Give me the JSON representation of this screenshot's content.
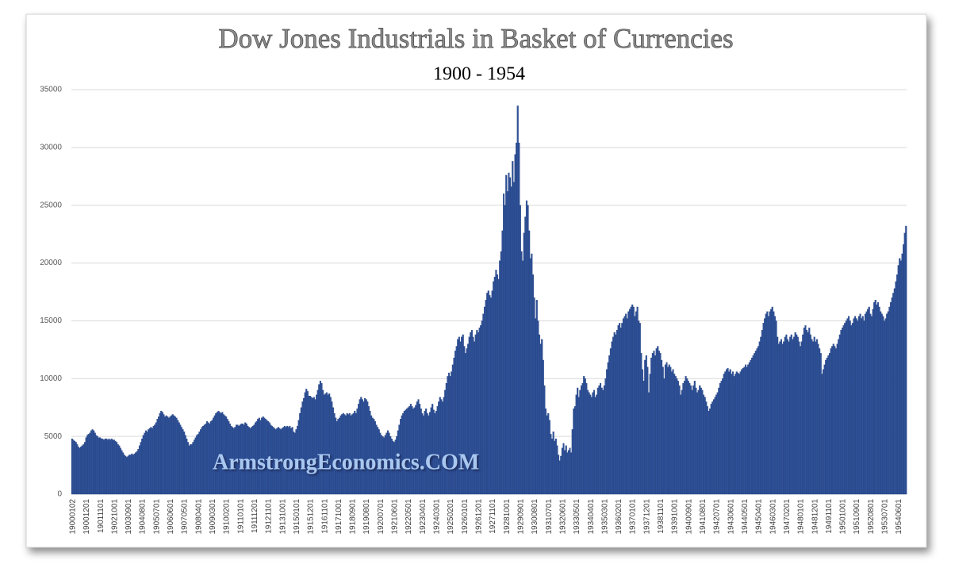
{
  "chart_data": {
    "type": "bar",
    "title": "Dow Jones Industrials in Basket of Currencies",
    "subtitle": "1900 - 1954",
    "watermark": "ArmstrongEconomics.COM",
    "color": "#2f5197",
    "grid": true,
    "ylim": [
      0,
      35000
    ],
    "yticks": [
      0,
      5000,
      10000,
      15000,
      20000,
      25000,
      30000,
      35000
    ],
    "categories": [
      "19000102",
      null,
      null,
      null,
      null,
      null,
      null,
      null,
      null,
      null,
      null,
      "19001201",
      null,
      null,
      null,
      null,
      null,
      null,
      null,
      null,
      null,
      null,
      "19011101",
      null,
      null,
      null,
      null,
      null,
      null,
      null,
      null,
      null,
      null,
      "19021001",
      null,
      null,
      null,
      null,
      null,
      null,
      null,
      null,
      null,
      null,
      "19030901",
      null,
      null,
      null,
      null,
      null,
      null,
      null,
      null,
      null,
      null,
      "19040801",
      null,
      null,
      null,
      null,
      null,
      null,
      null,
      null,
      null,
      null,
      "19050701",
      null,
      null,
      null,
      null,
      null,
      null,
      null,
      null,
      null,
      null,
      "19060601",
      null,
      null,
      null,
      null,
      null,
      null,
      null,
      null,
      null,
      null,
      "19070501",
      null,
      null,
      null,
      null,
      null,
      null,
      null,
      null,
      null,
      null,
      "19080401",
      null,
      null,
      null,
      null,
      null,
      null,
      null,
      null,
      null,
      null,
      "19090301",
      null,
      null,
      null,
      null,
      null,
      null,
      null,
      null,
      null,
      null,
      "19100201",
      null,
      null,
      null,
      null,
      null,
      null,
      null,
      null,
      null,
      null,
      "19110101",
      null,
      null,
      null,
      null,
      null,
      null,
      null,
      null,
      null,
      null,
      "19111201",
      null,
      null,
      null,
      null,
      null,
      null,
      null,
      null,
      null,
      null,
      "19121101",
      null,
      null,
      null,
      null,
      null,
      null,
      null,
      null,
      null,
      null,
      "19131001",
      null,
      null,
      null,
      null,
      null,
      null,
      null,
      null,
      null,
      null,
      "19150101",
      null,
      null,
      null,
      null,
      null,
      null,
      null,
      null,
      null,
      null,
      "19151201",
      null,
      null,
      null,
      null,
      null,
      null,
      null,
      null,
      null,
      null,
      "19161101",
      null,
      null,
      null,
      null,
      null,
      null,
      null,
      null,
      null,
      null,
      "19171001",
      null,
      null,
      null,
      null,
      null,
      null,
      null,
      null,
      null,
      null,
      "19180901",
      null,
      null,
      null,
      null,
      null,
      null,
      null,
      null,
      null,
      null,
      "19190801",
      null,
      null,
      null,
      null,
      null,
      null,
      null,
      null,
      null,
      null,
      "19200701",
      null,
      null,
      null,
      null,
      null,
      null,
      null,
      null,
      null,
      null,
      "19210601",
      null,
      null,
      null,
      null,
      null,
      null,
      null,
      null,
      null,
      null,
      "19220501",
      null,
      null,
      null,
      null,
      null,
      null,
      null,
      null,
      null,
      null,
      "19230401",
      null,
      null,
      null,
      null,
      null,
      null,
      null,
      null,
      null,
      null,
      "19240301",
      null,
      null,
      null,
      null,
      null,
      null,
      null,
      null,
      null,
      null,
      "19250201",
      null,
      null,
      null,
      null,
      null,
      null,
      null,
      null,
      null,
      null,
      "19260101",
      null,
      null,
      null,
      null,
      null,
      null,
      null,
      null,
      null,
      null,
      "19261201",
      null,
      null,
      null,
      null,
      null,
      null,
      null,
      null,
      null,
      null,
      "19271101",
      null,
      null,
      null,
      null,
      null,
      null,
      null,
      null,
      null,
      null,
      "19281001",
      null,
      null,
      null,
      null,
      null,
      null,
      null,
      null,
      null,
      null,
      "19290901",
      null,
      null,
      null,
      null,
      null,
      null,
      null,
      null,
      null,
      null,
      "19300801",
      null,
      null,
      null,
      null,
      null,
      null,
      null,
      null,
      null,
      null,
      "19310701",
      null,
      null,
      null,
      null,
      null,
      null,
      null,
      null,
      null,
      null,
      "19320601",
      null,
      null,
      null,
      null,
      null,
      null,
      null,
      null,
      null,
      null,
      "19330501",
      null,
      null,
      null,
      null,
      null,
      null,
      null,
      null,
      null,
      null,
      "19340401",
      null,
      null,
      null,
      null,
      null,
      null,
      null,
      null,
      null,
      null,
      "19350301",
      null,
      null,
      null,
      null,
      null,
      null,
      null,
      null,
      null,
      null,
      "19360201",
      null,
      null,
      null,
      null,
      null,
      null,
      null,
      null,
      null,
      null,
      "19370101",
      null,
      null,
      null,
      null,
      null,
      null,
      null,
      null,
      null,
      null,
      "19371201",
      null,
      null,
      null,
      null,
      null,
      null,
      null,
      null,
      null,
      null,
      "19381101",
      null,
      null,
      null,
      null,
      null,
      null,
      null,
      null,
      null,
      null,
      "19391001",
      null,
      null,
      null,
      null,
      null,
      null,
      null,
      null,
      null,
      null,
      "19400901",
      null,
      null,
      null,
      null,
      null,
      null,
      null,
      null,
      null,
      null,
      "19410801",
      null,
      null,
      null,
      null,
      null,
      null,
      null,
      null,
      null,
      null,
      "19420701",
      null,
      null,
      null,
      null,
      null,
      null,
      null,
      null,
      null,
      null,
      "19430601",
      null,
      null,
      null,
      null,
      null,
      null,
      null,
      null,
      null,
      null,
      "19440501",
      null,
      null,
      null,
      null,
      null,
      null,
      null,
      null,
      null,
      null,
      "19450401",
      null,
      null,
      null,
      null,
      null,
      null,
      null,
      null,
      null,
      null,
      "19460301",
      null,
      null,
      null,
      null,
      null,
      null,
      null,
      null,
      null,
      null,
      "19470201",
      null,
      null,
      null,
      null,
      null,
      null,
      null,
      null,
      null,
      null,
      "19480101",
      null,
      null,
      null,
      null,
      null,
      null,
      null,
      null,
      null,
      null,
      "19481201",
      null,
      null,
      null,
      null,
      null,
      null,
      null,
      null,
      null,
      null,
      "19491101",
      null,
      null,
      null,
      null,
      null,
      null,
      null,
      null,
      null,
      null,
      "19501001",
      null,
      null,
      null,
      null,
      null,
      null,
      null,
      null,
      null,
      null,
      "19510901",
      null,
      null,
      null,
      null,
      null,
      null,
      null,
      null,
      null,
      null,
      "19520801",
      null,
      null,
      null,
      null,
      null,
      null,
      null,
      null,
      null,
      null,
      "19530701",
      null,
      null,
      null,
      null,
      null,
      null,
      null,
      null,
      null,
      null,
      "19540601",
      null,
      null,
      null,
      null,
      null,
      null
    ],
    "values": [
      4800,
      4700,
      4600,
      4500,
      4300,
      4100,
      4000,
      4100,
      4200,
      4300,
      4500,
      4900,
      5100,
      5200,
      5300,
      5500,
      5600,
      5500,
      5300,
      5100,
      5000,
      4900,
      4900,
      4800,
      4800,
      4700,
      4800,
      4800,
      4700,
      4800,
      4700,
      4800,
      4700,
      4700,
      4600,
      4500,
      4300,
      4200,
      4000,
      3800,
      3600,
      3400,
      3300,
      3200,
      3300,
      3400,
      3400,
      3500,
      3400,
      3500,
      3600,
      3700,
      3900,
      4200,
      4500,
      4800,
      5100,
      5300,
      5500,
      5400,
      5600,
      5700,
      5800,
      5700,
      5900,
      6000,
      6200,
      6500,
      6700,
      7000,
      7200,
      7100,
      6900,
      6700,
      6800,
      6700,
      6600,
      6700,
      6800,
      6900,
      6800,
      6700,
      6600,
      6400,
      6200,
      6000,
      5800,
      5600,
      5400,
      5100,
      4800,
      4500,
      4200,
      4300,
      4300,
      4500,
      4700,
      4900,
      5100,
      5200,
      5400,
      5600,
      5800,
      5900,
      6000,
      6100,
      6300,
      6200,
      6100,
      6300,
      6400,
      6600,
      6800,
      7000,
      7100,
      7200,
      7100,
      7000,
      7100,
      6900,
      6800,
      6700,
      6500,
      6300,
      6100,
      5900,
      5800,
      5700,
      5800,
      6000,
      6000,
      5900,
      6000,
      6100,
      6100,
      6000,
      6200,
      6100,
      5900,
      5800,
      5700,
      5800,
      5900,
      6000,
      6200,
      6300,
      6500,
      6600,
      6400,
      6600,
      6700,
      6600,
      6500,
      6400,
      6300,
      6200,
      6000,
      5900,
      5800,
      5700,
      5600,
      5700,
      5800,
      5700,
      5600,
      5700,
      5800,
      5900,
      5800,
      5900,
      5800,
      5900,
      5700,
      5800,
      5400,
      5300,
      5600,
      5900,
      6400,
      7000,
      7500,
      8000,
      8300,
      8800,
      9100,
      8900,
      8500,
      8500,
      8400,
      8300,
      8400,
      8200,
      8600,
      9000,
      9500,
      9800,
      9600,
      9000,
      8600,
      8700,
      8800,
      8600,
      8700,
      8400,
      8000,
      7500,
      7000,
      6600,
      6300,
      6500,
      6600,
      6800,
      6900,
      7000,
      6900,
      6800,
      7000,
      6900,
      7000,
      6800,
      6900,
      7000,
      7200,
      7000,
      7400,
      7800,
      8200,
      8400,
      8200,
      8000,
      8300,
      8200,
      8000,
      7600,
      7200,
      6800,
      6600,
      6500,
      6300,
      6000,
      5800,
      5600,
      5300,
      5100,
      5000,
      4900,
      5100,
      5300,
      5500,
      5300,
      5000,
      4800,
      4600,
      4500,
      4700,
      5000,
      5500,
      6000,
      6500,
      6800,
      7000,
      7200,
      7300,
      7400,
      7500,
      7600,
      7800,
      7600,
      7400,
      7500,
      7700,
      8000,
      8200,
      7800,
      7400,
      7000,
      6800,
      7200,
      7400,
      7000,
      6800,
      7100,
      7500,
      7800,
      7300,
      7000,
      7200,
      7600,
      8000,
      8400,
      8200,
      8000,
      8400,
      9000,
      9600,
      10200,
      10500,
      10200,
      10600,
      11200,
      11800,
      12400,
      12800,
      13400,
      13600,
      13200,
      13600,
      13800,
      12800,
      12200,
      12600,
      13000,
      13600,
      14000,
      14200,
      13600,
      13200,
      13800,
      14200,
      14000,
      14400,
      14600,
      15000,
      15600,
      16200,
      16800,
      17400,
      17600,
      17200,
      17000,
      17600,
      18400,
      18800,
      19400,
      19000,
      18600,
      20200,
      21000,
      22800,
      26000,
      25000,
      27600,
      26200,
      27800,
      27400,
      26600,
      28800,
      27000,
      29400,
      30400,
      33600,
      30400,
      25000,
      21000,
      20200,
      22600,
      24000,
      25400,
      25000,
      22800,
      20400,
      20800,
      19000,
      17000,
      15200,
      16800,
      15000,
      13800,
      13000,
      13400,
      11600,
      9400,
      7400,
      6800,
      7000,
      6400,
      5200,
      4800,
      5400,
      4600,
      4800,
      4200,
      3400,
      2900,
      3300,
      4000,
      4400,
      3800,
      4200,
      3600,
      3800,
      4000,
      3600,
      5600,
      7400,
      7600,
      8600,
      9200,
      8400,
      9000,
      9400,
      9600,
      10200,
      10000,
      9600,
      9000,
      8800,
      8600,
      8400,
      8800,
      9000,
      8400,
      8600,
      9200,
      9400,
      9600,
      9200,
      9000,
      9400,
      10000,
      10800,
      11400,
      12000,
      12600,
      13200,
      13600,
      14000,
      13800,
      14200,
      14600,
      14800,
      14400,
      14800,
      15200,
      15400,
      15600,
      15200,
      15800,
      16000,
      16200,
      16400,
      16200,
      15400,
      15800,
      16200,
      15000,
      14800,
      12200,
      10800,
      9800,
      11600,
      12000,
      11000,
      8800,
      10400,
      11800,
      12200,
      12400,
      12000,
      12600,
      12800,
      12400,
      12200,
      11600,
      11000,
      10000,
      11200,
      11400,
      11000,
      11200,
      11000,
      10600,
      10800,
      10400,
      10200,
      10000,
      9800,
      9400,
      8600,
      9000,
      9600,
      9800,
      10200,
      10000,
      9800,
      9600,
      9400,
      9000,
      9400,
      9800,
      9200,
      8800,
      9000,
      9400,
      9200,
      9000,
      8600,
      8400,
      8000,
      7600,
      7200,
      7400,
      7800,
      8000,
      8200,
      8400,
      8600,
      8800,
      9200,
      9600,
      9800,
      10000,
      10400,
      10600,
      10800,
      10900,
      10600,
      10800,
      10400,
      10600,
      10200,
      10400,
      10600,
      10500,
      10400,
      10600,
      10800,
      10900,
      11000,
      11200,
      11000,
      11200,
      11400,
      11600,
      11800,
      12000,
      12200,
      12400,
      12600,
      12800,
      13200,
      13600,
      14200,
      14800,
      15200,
      15600,
      15800,
      15400,
      15800,
      16000,
      16200,
      15800,
      15400,
      15000,
      13600,
      13000,
      13200,
      13400,
      13000,
      13200,
      13600,
      13800,
      13400,
      13200,
      13600,
      13800,
      13400,
      13600,
      14000,
      13800,
      13600,
      13200,
      12800,
      13200,
      13800,
      14400,
      14600,
      14200,
      14000,
      14400,
      13800,
      13400,
      13200,
      13600,
      13200,
      13400,
      13000,
      12600,
      12200,
      10400,
      10800,
      11200,
      11600,
      11800,
      12000,
      12200,
      12600,
      12800,
      13000,
      12800,
      12600,
      13000,
      13400,
      13800,
      14200,
      14400,
      14600,
      14800,
      15000,
      15200,
      15400,
      15000,
      14600,
      14800,
      15200,
      15400,
      15200,
      15000,
      15400,
      15600,
      15200,
      15400,
      15000,
      15600,
      15800,
      16000,
      16200,
      15600,
      15400,
      16000,
      16600,
      16800,
      16400,
      16600,
      16200,
      15800,
      15600,
      15400,
      15000,
      15200,
      15600,
      15800,
      16200,
      16600,
      17000,
      17400,
      17800,
      18400,
      19000,
      19800,
      20400,
      20200,
      20800,
      21600,
      22600,
      23200
    ]
  }
}
